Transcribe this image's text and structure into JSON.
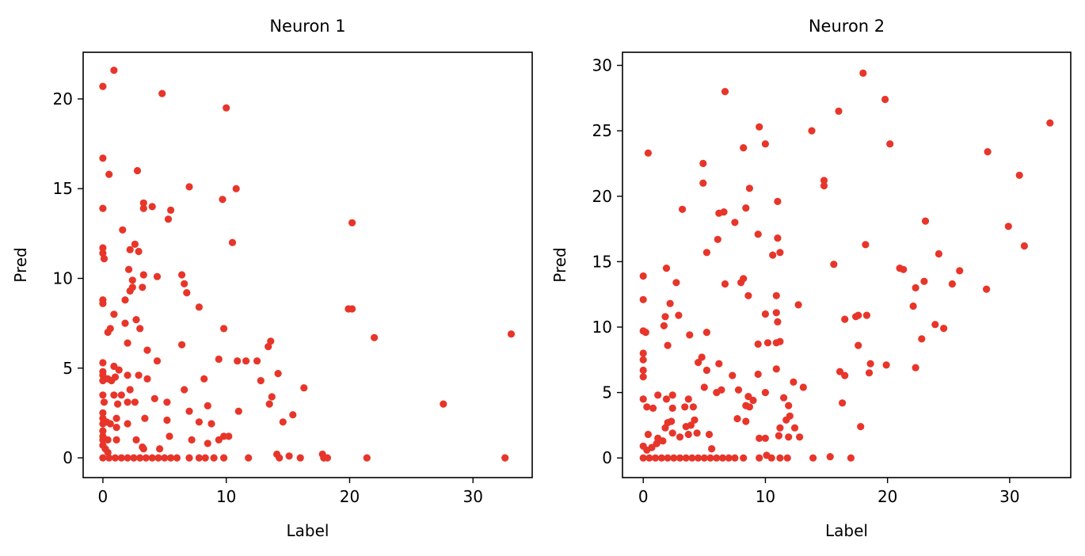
{
  "chart_data": [
    {
      "type": "scatter",
      "title": "Neuron 1",
      "xlabel": "Label",
      "ylabel": "Pred",
      "xlim": [
        -1.6,
        34.8
      ],
      "ylim": [
        -1.1,
        22.6
      ],
      "xticks": [
        0,
        10,
        20,
        30
      ],
      "yticks": [
        0,
        5,
        10,
        15,
        20
      ],
      "marker_color": "#e8352a",
      "points": [
        [
          0.0,
          20.7
        ],
        [
          0.9,
          21.6
        ],
        [
          4.8,
          20.3
        ],
        [
          10.0,
          19.5
        ],
        [
          0.0,
          16.7
        ],
        [
          0.5,
          15.8
        ],
        [
          2.8,
          16.0
        ],
        [
          0.0,
          13.9
        ],
        [
          3.3,
          14.2
        ],
        [
          3.3,
          13.9
        ],
        [
          4.0,
          14.0
        ],
        [
          5.5,
          13.8
        ],
        [
          5.3,
          13.3
        ],
        [
          7.0,
          15.1
        ],
        [
          9.7,
          14.4
        ],
        [
          10.8,
          15.0
        ],
        [
          1.6,
          12.7
        ],
        [
          0.0,
          11.7
        ],
        [
          0.0,
          11.4
        ],
        [
          0.1,
          11.1
        ],
        [
          2.2,
          11.6
        ],
        [
          2.6,
          11.9
        ],
        [
          2.9,
          11.5
        ],
        [
          10.5,
          12.0
        ],
        [
          2.4,
          9.9
        ],
        [
          2.1,
          10.5
        ],
        [
          3.3,
          10.2
        ],
        [
          4.4,
          10.1
        ],
        [
          2.2,
          9.3
        ],
        [
          2.4,
          9.5
        ],
        [
          3.2,
          9.5
        ],
        [
          6.4,
          10.2
        ],
        [
          6.6,
          9.7
        ],
        [
          6.8,
          9.2
        ],
        [
          1.8,
          8.8
        ],
        [
          0.0,
          8.8
        ],
        [
          0.0,
          8.6
        ],
        [
          7.8,
          8.4
        ],
        [
          20.2,
          13.1
        ],
        [
          19.9,
          8.3
        ],
        [
          20.2,
          8.3
        ],
        [
          22.0,
          6.7
        ],
        [
          33.1,
          6.9
        ],
        [
          27.6,
          3.0
        ],
        [
          0.4,
          7.0
        ],
        [
          0.6,
          7.2
        ],
        [
          0.9,
          8.0
        ],
        [
          1.8,
          7.5
        ],
        [
          2.7,
          7.7
        ],
        [
          3.0,
          7.2
        ],
        [
          9.8,
          7.2
        ],
        [
          2.0,
          6.4
        ],
        [
          3.6,
          6.0
        ],
        [
          6.4,
          6.3
        ],
        [
          12.5,
          5.4
        ],
        [
          11.6,
          5.4
        ],
        [
          10.9,
          5.4
        ],
        [
          13.6,
          6.5
        ],
        [
          13.4,
          6.2
        ],
        [
          9.4,
          5.5
        ],
        [
          0.0,
          5.3
        ],
        [
          0.0,
          4.8
        ],
        [
          0.0,
          4.6
        ],
        [
          0.0,
          4.3
        ],
        [
          0.4,
          4.4
        ],
        [
          0.7,
          4.3
        ],
        [
          0.9,
          5.1
        ],
        [
          1.3,
          4.9
        ],
        [
          2.0,
          4.6
        ],
        [
          2.9,
          4.6
        ],
        [
          3.6,
          4.4
        ],
        [
          4.4,
          5.4
        ],
        [
          8.2,
          4.4
        ],
        [
          12.8,
          4.3
        ],
        [
          14.2,
          4.7
        ],
        [
          1.0,
          4.5
        ],
        [
          16.3,
          3.9
        ],
        [
          0.0,
          3.5
        ],
        [
          0.1,
          3.1
        ],
        [
          0.9,
          3.5
        ],
        [
          1.2,
          3.0
        ],
        [
          1.5,
          3.5
        ],
        [
          2.2,
          3.8
        ],
        [
          2.0,
          3.1
        ],
        [
          2.6,
          3.1
        ],
        [
          4.2,
          3.3
        ],
        [
          5.2,
          3.1
        ],
        [
          6.6,
          3.8
        ],
        [
          11.0,
          2.6
        ],
        [
          13.7,
          3.4
        ],
        [
          13.5,
          3.0
        ],
        [
          14.6,
          2.0
        ],
        [
          15.4,
          2.4
        ],
        [
          7.0,
          2.6
        ],
        [
          8.5,
          2.9
        ],
        [
          0.0,
          2.5
        ],
        [
          0.0,
          2.2
        ],
        [
          0.0,
          1.9
        ],
        [
          0.0,
          1.5
        ],
        [
          0.0,
          1.2
        ],
        [
          0.3,
          2.0
        ],
        [
          0.6,
          1.9
        ],
        [
          1.1,
          1.7
        ],
        [
          1.1,
          2.2
        ],
        [
          2.0,
          1.9
        ],
        [
          3.4,
          2.2
        ],
        [
          5.2,
          2.1
        ],
        [
          7.8,
          2.0
        ],
        [
          8.8,
          1.9
        ],
        [
          9.8,
          1.2
        ],
        [
          10.2,
          1.2
        ],
        [
          0.0,
          1.0
        ],
        [
          0.4,
          1.0
        ],
        [
          1.1,
          1.0
        ],
        [
          2.7,
          1.0
        ],
        [
          5.4,
          1.2
        ],
        [
          7.2,
          1.0
        ],
        [
          8.5,
          0.8
        ],
        [
          9.4,
          1.0
        ],
        [
          0.0,
          0.7
        ],
        [
          0.2,
          0.5
        ],
        [
          0.4,
          0.3
        ],
        [
          3.2,
          0.6
        ],
        [
          3.3,
          0.5
        ],
        [
          4.6,
          0.5
        ],
        [
          14.1,
          0.2
        ],
        [
          15.1,
          0.1
        ],
        [
          17.8,
          0.2
        ],
        [
          0.0,
          0.0
        ],
        [
          0.5,
          0.0
        ],
        [
          1.0,
          0.0
        ],
        [
          1.5,
          0.0
        ],
        [
          2.0,
          0.0
        ],
        [
          2.5,
          0.0
        ],
        [
          3.0,
          0.0
        ],
        [
          3.5,
          0.0
        ],
        [
          4.0,
          0.0
        ],
        [
          4.5,
          0.0
        ],
        [
          5.0,
          0.0
        ],
        [
          5.5,
          0.0
        ],
        [
          6.0,
          0.0
        ],
        [
          7.0,
          0.0
        ],
        [
          7.8,
          0.0
        ],
        [
          8.3,
          0.0
        ],
        [
          9.0,
          0.0
        ],
        [
          9.8,
          0.0
        ],
        [
          11.8,
          0.0
        ],
        [
          14.3,
          0.0
        ],
        [
          16.0,
          0.0
        ],
        [
          17.9,
          0.0
        ],
        [
          18.2,
          0.0
        ],
        [
          21.4,
          0.0
        ],
        [
          32.6,
          0.0
        ]
      ]
    },
    {
      "type": "scatter",
      "title": "Neuron 2",
      "xlabel": "Label",
      "ylabel": "Pred",
      "xlim": [
        -1.7,
        35.0
      ],
      "ylim": [
        -1.5,
        31.0
      ],
      "xticks": [
        0,
        10,
        20,
        30
      ],
      "yticks": [
        0,
        5,
        10,
        15,
        20,
        25,
        30
      ],
      "marker_color": "#e8352a",
      "points": [
        [
          18.0,
          29.4
        ],
        [
          6.7,
          28.0
        ],
        [
          19.8,
          27.4
        ],
        [
          16.0,
          26.5
        ],
        [
          33.3,
          25.6
        ],
        [
          9.5,
          25.3
        ],
        [
          13.8,
          25.0
        ],
        [
          10.0,
          24.0
        ],
        [
          8.2,
          23.7
        ],
        [
          20.2,
          24.0
        ],
        [
          0.4,
          23.3
        ],
        [
          28.2,
          23.4
        ],
        [
          4.9,
          22.5
        ],
        [
          4.9,
          21.0
        ],
        [
          14.8,
          21.2
        ],
        [
          14.8,
          20.8
        ],
        [
          30.8,
          21.6
        ],
        [
          8.7,
          20.6
        ],
        [
          11.0,
          19.6
        ],
        [
          3.2,
          19.0
        ],
        [
          6.2,
          18.7
        ],
        [
          6.6,
          18.8
        ],
        [
          8.4,
          19.1
        ],
        [
          7.5,
          18.0
        ],
        [
          23.1,
          18.1
        ],
        [
          9.4,
          17.1
        ],
        [
          6.1,
          16.7
        ],
        [
          11.0,
          16.8
        ],
        [
          18.2,
          16.3
        ],
        [
          29.9,
          17.7
        ],
        [
          31.2,
          16.2
        ],
        [
          5.2,
          15.7
        ],
        [
          10.6,
          15.5
        ],
        [
          11.2,
          15.7
        ],
        [
          15.6,
          14.8
        ],
        [
          21.0,
          14.5
        ],
        [
          21.3,
          14.4
        ],
        [
          24.2,
          15.6
        ],
        [
          25.9,
          14.3
        ],
        [
          25.3,
          13.3
        ],
        [
          23.0,
          13.5
        ],
        [
          22.3,
          13.0
        ],
        [
          0.0,
          13.9
        ],
        [
          1.9,
          14.5
        ],
        [
          2.7,
          13.4
        ],
        [
          6.7,
          13.3
        ],
        [
          8.0,
          13.4
        ],
        [
          8.2,
          13.7
        ],
        [
          8.6,
          12.4
        ],
        [
          10.9,
          12.4
        ],
        [
          12.7,
          11.7
        ],
        [
          0.0,
          12.1
        ],
        [
          2.2,
          11.8
        ],
        [
          1.8,
          10.8
        ],
        [
          2.9,
          10.9
        ],
        [
          10.0,
          11.0
        ],
        [
          10.9,
          11.1
        ],
        [
          11.0,
          10.4
        ],
        [
          17.6,
          10.9
        ],
        [
          17.4,
          10.8
        ],
        [
          16.5,
          10.6
        ],
        [
          18.3,
          10.9
        ],
        [
          22.1,
          11.6
        ],
        [
          28.1,
          12.9
        ],
        [
          23.9,
          10.2
        ],
        [
          24.6,
          9.9
        ],
        [
          0.0,
          9.7
        ],
        [
          0.2,
          9.6
        ],
        [
          1.7,
          10.1
        ],
        [
          5.2,
          9.6
        ],
        [
          9.4,
          8.7
        ],
        [
          10.2,
          8.8
        ],
        [
          10.9,
          8.8
        ],
        [
          11.2,
          8.9
        ],
        [
          2.0,
          8.6
        ],
        [
          3.8,
          9.4
        ],
        [
          17.6,
          8.6
        ],
        [
          22.8,
          9.1
        ],
        [
          18.6,
          7.2
        ],
        [
          18.5,
          6.5
        ],
        [
          19.9,
          7.1
        ],
        [
          22.3,
          6.9
        ],
        [
          0.0,
          8.0
        ],
        [
          0.0,
          7.5
        ],
        [
          4.5,
          7.3
        ],
        [
          4.8,
          7.7
        ],
        [
          5.2,
          6.7
        ],
        [
          6.2,
          7.2
        ],
        [
          9.4,
          6.4
        ],
        [
          7.3,
          6.3
        ],
        [
          10.9,
          6.8
        ],
        [
          16.1,
          6.6
        ],
        [
          16.5,
          6.3
        ],
        [
          0.0,
          6.7
        ],
        [
          0.0,
          6.2
        ],
        [
          6.0,
          5.0
        ],
        [
          6.4,
          5.2
        ],
        [
          5.0,
          5.4
        ],
        [
          7.8,
          5.2
        ],
        [
          10.0,
          5.0
        ],
        [
          11.5,
          4.6
        ],
        [
          12.3,
          5.8
        ],
        [
          13.1,
          5.4
        ],
        [
          16.3,
          4.2
        ],
        [
          0.0,
          4.5
        ],
        [
          0.3,
          3.9
        ],
        [
          0.8,
          3.8
        ],
        [
          1.2,
          4.8
        ],
        [
          1.9,
          4.5
        ],
        [
          2.4,
          4.8
        ],
        [
          3.4,
          3.9
        ],
        [
          3.7,
          4.5
        ],
        [
          4.1,
          3.9
        ],
        [
          8.4,
          4.0
        ],
        [
          8.7,
          3.9
        ],
        [
          8.6,
          4.7
        ],
        [
          9.0,
          4.4
        ],
        [
          11.9,
          4.0
        ],
        [
          2.4,
          3.8
        ],
        [
          1.8,
          2.3
        ],
        [
          2.0,
          2.7
        ],
        [
          2.3,
          2.8
        ],
        [
          3.5,
          2.4
        ],
        [
          3.9,
          2.5
        ],
        [
          4.2,
          2.9
        ],
        [
          7.7,
          3.0
        ],
        [
          8.4,
          2.8
        ],
        [
          11.2,
          2.3
        ],
        [
          11.7,
          2.9
        ],
        [
          12.0,
          3.2
        ],
        [
          12.4,
          2.3
        ],
        [
          17.8,
          2.4
        ],
        [
          1.2,
          1.5
        ],
        [
          1.6,
          1.3
        ],
        [
          2.4,
          1.9
        ],
        [
          3.0,
          1.6
        ],
        [
          3.7,
          1.8
        ],
        [
          4.4,
          1.9
        ],
        [
          5.4,
          1.8
        ],
        [
          11.1,
          1.7
        ],
        [
          11.9,
          1.6
        ],
        [
          12.8,
          1.6
        ],
        [
          0.4,
          1.8
        ],
        [
          0.0,
          0.9
        ],
        [
          0.3,
          0.6
        ],
        [
          0.7,
          0.8
        ],
        [
          1.1,
          1.1
        ],
        [
          5.6,
          0.7
        ],
        [
          9.5,
          1.5
        ],
        [
          10.0,
          1.5
        ],
        [
          10.1,
          0.2
        ],
        [
          0.0,
          0.0
        ],
        [
          0.5,
          0.0
        ],
        [
          1.0,
          0.0
        ],
        [
          1.5,
          0.0
        ],
        [
          2.0,
          0.0
        ],
        [
          2.5,
          0.0
        ],
        [
          3.0,
          0.0
        ],
        [
          3.5,
          0.0
        ],
        [
          4.0,
          0.0
        ],
        [
          4.5,
          0.0
        ],
        [
          5.0,
          0.0
        ],
        [
          5.5,
          0.0
        ],
        [
          6.0,
          0.0
        ],
        [
          6.5,
          0.0
        ],
        [
          7.0,
          0.0
        ],
        [
          7.5,
          0.0
        ],
        [
          8.2,
          0.0
        ],
        [
          9.5,
          0.0
        ],
        [
          10.5,
          0.0
        ],
        [
          11.2,
          0.0
        ],
        [
          11.8,
          0.0
        ],
        [
          13.9,
          0.0
        ],
        [
          15.3,
          0.1
        ],
        [
          17.0,
          0.0
        ]
      ]
    }
  ]
}
